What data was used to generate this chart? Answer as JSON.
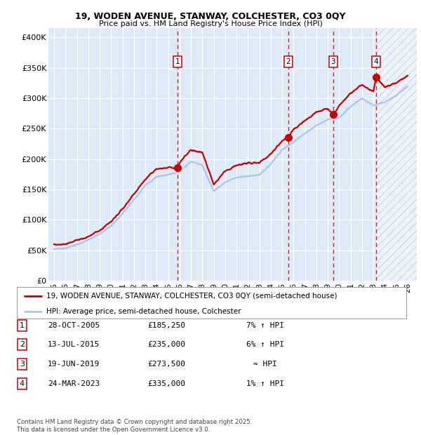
{
  "title_line1": "19, WODEN AVENUE, STANWAY, COLCHESTER, CO3 0QY",
  "title_line2": "Price paid vs. HM Land Registry's House Price Index (HPI)",
  "ylabel_ticks": [
    "£0",
    "£50K",
    "£100K",
    "£150K",
    "£200K",
    "£250K",
    "£300K",
    "£350K",
    "£400K"
  ],
  "ytick_values": [
    0,
    50000,
    100000,
    150000,
    200000,
    250000,
    300000,
    350000,
    400000
  ],
  "ylim": [
    0,
    415000
  ],
  "xlim_start": 1994.5,
  "xlim_end": 2026.8,
  "bg_color": "#ddeaf8",
  "hpi_line_color": "#aac8ee",
  "price_line_color": "#cc0000",
  "transaction_marker_color": "#cc0000",
  "dashed_line_color": "#cc0000",
  "transactions": [
    {
      "label": "1",
      "date_num": 2005.83,
      "price": 185250,
      "text": "28-OCT-2005",
      "amount": "£185,250",
      "hpi_rel": "7% ↑ HPI"
    },
    {
      "label": "2",
      "date_num": 2015.53,
      "price": 235000,
      "text": "13-JUL-2015",
      "amount": "£235,000",
      "hpi_rel": "6% ↑ HPI"
    },
    {
      "label": "3",
      "date_num": 2019.47,
      "price": 273500,
      "text": "19-JUN-2019",
      "amount": "£273,500",
      "hpi_rel": "≈ HPI"
    },
    {
      "label": "4",
      "date_num": 2023.23,
      "price": 335000,
      "text": "24-MAR-2023",
      "amount": "£335,000",
      "hpi_rel": "1% ↑ HPI"
    }
  ],
  "legend_line1": "19, WODEN AVENUE, STANWAY, COLCHESTER, CO3 0QY (semi-detached house)",
  "legend_line2": "HPI: Average price, semi-detached house, Colchester",
  "footer_line1": "Contains HM Land Registry data © Crown copyright and database right 2025.",
  "footer_line2": "This data is licensed under the Open Government Licence v3.0.",
  "hpi_anchors_x": [
    1995,
    1996,
    1997,
    1998,
    1999,
    2000,
    2001,
    2002,
    2003,
    2004,
    2005,
    2006,
    2007,
    2008,
    2009,
    2010,
    2011,
    2012,
    2013,
    2014,
    2015,
    2016,
    2017,
    2018,
    2019,
    2020,
    2021,
    2022,
    2023,
    2024,
    2025,
    2026
  ],
  "hpi_anchors_y": [
    52000,
    53500,
    59000,
    67000,
    77000,
    90000,
    110000,
    133000,
    157000,
    171000,
    174000,
    179000,
    196000,
    190000,
    147000,
    162000,
    170000,
    172000,
    174000,
    192000,
    215000,
    228000,
    242000,
    255000,
    265000,
    268000,
    286000,
    300000,
    288000,
    294000,
    304000,
    320000
  ],
  "price_anchors_x": [
    1995,
    1996,
    1997,
    1998,
    1999,
    2000,
    2001,
    2002,
    2003,
    2004,
    2005,
    2005.83,
    2006,
    2007,
    2008,
    2009,
    2010,
    2011,
    2012,
    2013,
    2014,
    2015,
    2015.53,
    2016,
    2017,
    2018,
    2019,
    2019.47,
    2020,
    2021,
    2022,
    2023,
    2023.23,
    2024,
    2025,
    2026
  ],
  "price_anchors_y": [
    58000,
    60000,
    66000,
    72000,
    83000,
    97000,
    118000,
    142000,
    167000,
    184000,
    186000,
    185250,
    194000,
    215000,
    210000,
    158000,
    180000,
    190000,
    193000,
    194000,
    208000,
    230000,
    235000,
    248000,
    263000,
    277000,
    283000,
    273500,
    288000,
    308000,
    323000,
    310000,
    335000,
    318000,
    325000,
    338000
  ]
}
